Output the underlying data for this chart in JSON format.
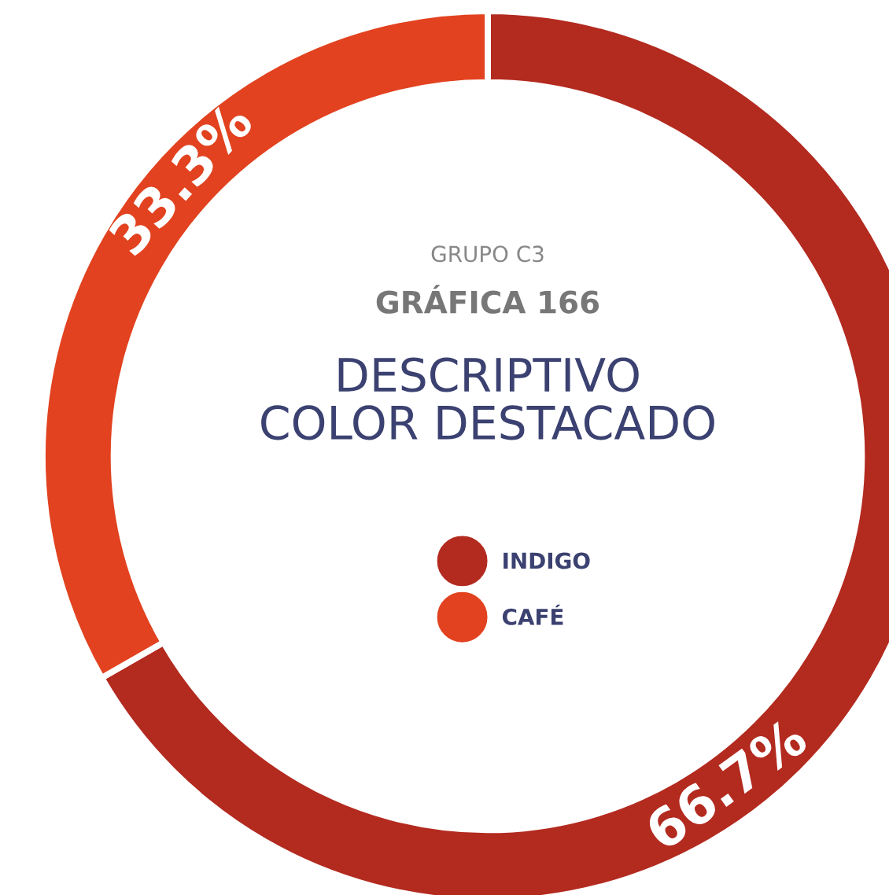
{
  "chart_data": {
    "type": "donut",
    "annotations": [
      "GRUPO C3"
    ],
    "title": "GRÁFICA 166",
    "subtitle": "DESCRIPTIVO\nCOLOR DESTACADO",
    "categories": [
      "INDIGO",
      "CAFÉ"
    ],
    "values": [
      66.7,
      33.3
    ],
    "colors": [
      "#b32a1f",
      "#e2421f"
    ],
    "value_labels": [
      "66.7%",
      "33.3%"
    ],
    "legend": "center"
  }
}
